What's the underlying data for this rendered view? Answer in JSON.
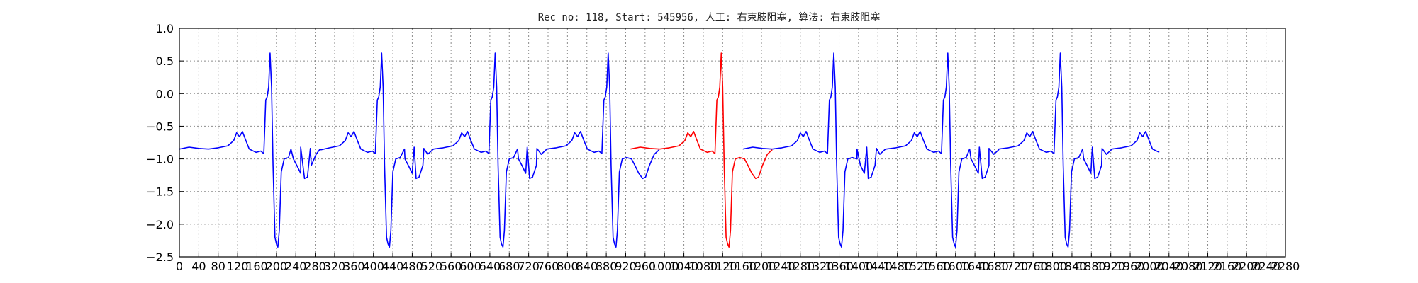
{
  "chart_data": {
    "type": "line",
    "title": "Rec_no: 118, Start: 545956, 人工: 右束肢阻塞, 算法: 右束肢阻塞",
    "xlabel": "",
    "ylabel": "",
    "xlim": [
      0,
      2280
    ],
    "ylim": [
      -2.5,
      1.0
    ],
    "grid": true,
    "x_ticks": [
      0,
      40,
      80,
      120,
      160,
      200,
      240,
      280,
      320,
      360,
      400,
      440,
      480,
      520,
      560,
      600,
      640,
      680,
      720,
      760,
      800,
      840,
      880,
      920,
      960,
      1000,
      1040,
      1080,
      1120,
      1160,
      1200,
      1240,
      1280,
      1320,
      1360,
      1400,
      1440,
      1480,
      1520,
      1560,
      1600,
      1640,
      1680,
      1720,
      1760,
      1800,
      1840,
      1880,
      1920,
      1960,
      2000,
      2040,
      2080,
      2120,
      2160,
      2200,
      2240,
      2280
    ],
    "y_ticks": [
      -2.5,
      -2.0,
      -1.5,
      -1.0,
      -0.5,
      0.0,
      0.5,
      1.0
    ],
    "y_tick_labels": [
      "−2.5",
      "−2.0",
      "−1.5",
      "−1.0",
      "−0.5",
      "0.0",
      "0.5",
      "1.0"
    ],
    "beat_template": [
      [
        0,
        -0.85
      ],
      [
        20,
        -0.82
      ],
      [
        40,
        -0.84
      ],
      [
        60,
        -0.85
      ],
      [
        80,
        -0.83
      ],
      [
        100,
        -0.8
      ],
      [
        112,
        -0.72
      ],
      [
        118,
        -0.6
      ],
      [
        124,
        -0.66
      ],
      [
        130,
        -0.58
      ],
      [
        136,
        -0.7
      ],
      [
        144,
        -0.85
      ],
      [
        158,
        -0.9
      ],
      [
        168,
        -0.88
      ],
      [
        174,
        -0.92
      ],
      [
        178,
        -0.1
      ],
      [
        181,
        -0.05
      ],
      [
        184,
        0.1
      ],
      [
        187,
        0.62
      ],
      [
        190,
        0.1
      ],
      [
        193,
        -1.1
      ],
      [
        197,
        -2.2
      ],
      [
        200,
        -2.3
      ],
      [
        203,
        -2.35
      ],
      [
        206,
        -2.1
      ],
      [
        210,
        -1.2
      ],
      [
        216,
        -1.0
      ],
      [
        225,
        -0.98
      ],
      [
        235,
        -1.0
      ],
      [
        242,
        -1.1
      ],
      [
        250,
        -1.22
      ],
      [
        258,
        -1.3
      ],
      [
        264,
        -1.28
      ],
      [
        272,
        -1.1
      ],
      [
        282,
        -0.93
      ],
      [
        292,
        -0.86
      ]
    ],
    "series": [
      {
        "color": "#0000ff",
        "beat_offsets": [
          0,
          230,
          464,
          697,
          1162,
          1397,
          1629,
          1862
        ],
        "tail_until": 2020
      },
      {
        "color": "#ff0000",
        "beat_offsets": [
          930
        ]
      }
    ]
  }
}
